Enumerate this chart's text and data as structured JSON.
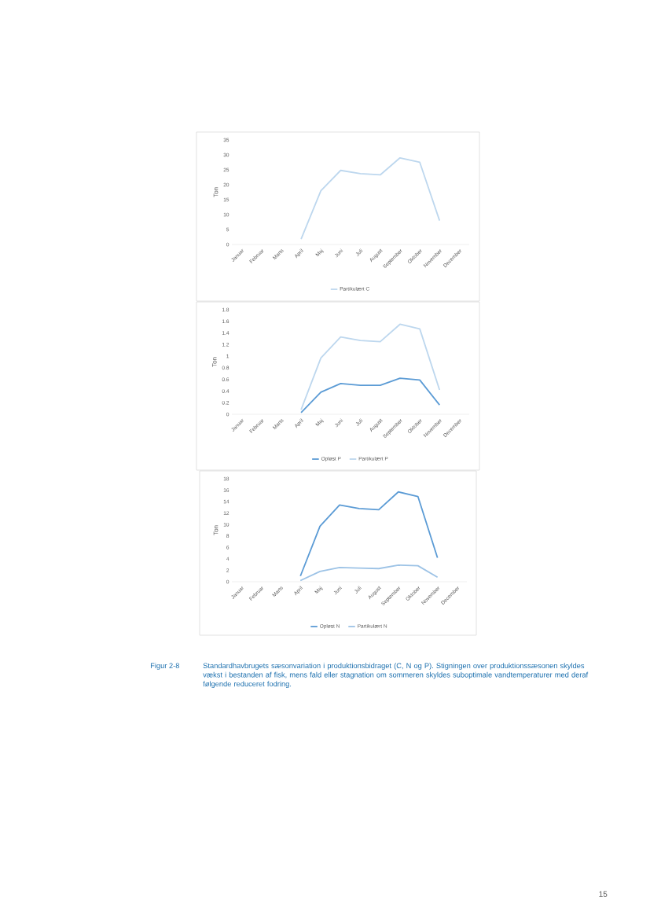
{
  "chart_data": [
    {
      "type": "line",
      "categories": [
        "Januar",
        "Februar",
        "Marts",
        "April",
        "Maj",
        "Juni",
        "Juli",
        "August",
        "September",
        "Oktober",
        "November",
        "December"
      ],
      "ylabel": "Ton",
      "ylim": [
        0,
        35
      ],
      "yticks": [
        0,
        5,
        10,
        15,
        20,
        25,
        30,
        35
      ],
      "grid": false,
      "legend": "bottom",
      "series": [
        {
          "name": "Partikulært C",
          "color": "#bdd7ee",
          "values": [
            null,
            null,
            null,
            1.8,
            18,
            24.8,
            23.7,
            23.3,
            29,
            27.5,
            8,
            null
          ]
        }
      ]
    },
    {
      "type": "line",
      "categories": [
        "Januar",
        "Februar",
        "Marts",
        "April",
        "Maj",
        "Juni",
        "Juli",
        "August",
        "September",
        "Oktober",
        "November",
        "December"
      ],
      "ylabel": "Ton",
      "ylim": [
        0,
        1.8
      ],
      "yticks": [
        0,
        0.2,
        0.4,
        0.6,
        0.8,
        1,
        1.2,
        1.4,
        1.6,
        1.8
      ],
      "grid": false,
      "legend": "bottom",
      "series": [
        {
          "name": "Opløst P",
          "color": "#5b9bd5",
          "values": [
            null,
            null,
            null,
            0.03,
            0.38,
            0.53,
            0.5,
            0.5,
            0.62,
            0.59,
            0.16,
            null
          ]
        },
        {
          "name": "Partikulært P",
          "color": "#bdd7ee",
          "values": [
            null,
            null,
            null,
            0.08,
            0.97,
            1.33,
            1.27,
            1.25,
            1.55,
            1.47,
            0.42,
            null
          ]
        }
      ]
    },
    {
      "type": "line",
      "categories": [
        "Januar",
        "Februar",
        "Marts",
        "April",
        "Maj",
        "Juni",
        "Juli",
        "August",
        "September",
        "Oktober",
        "November",
        "December"
      ],
      "ylabel": "Ton",
      "ylim": [
        0,
        18
      ],
      "yticks": [
        0,
        2,
        4,
        6,
        8,
        10,
        12,
        14,
        16,
        18
      ],
      "grid": false,
      "legend": "bottom",
      "series": [
        {
          "name": "Opløst N",
          "color": "#5b9bd5",
          "values": [
            null,
            null,
            null,
            1.0,
            9.7,
            13.4,
            12.8,
            12.6,
            15.7,
            14.9,
            4.2,
            null
          ]
        },
        {
          "name": "Partikulært N",
          "color": "#9dc3e6",
          "values": [
            null,
            null,
            null,
            0.2,
            1.8,
            2.5,
            2.4,
            2.3,
            2.9,
            2.8,
            0.8,
            null
          ]
        }
      ],
      "annotations": [
        "Figur 2-8",
        "Standardhavbrugets sæsonvariation i produktionsbidraget (C, N og P). Stigningen over produktionssæsonen skyldes vækst i bestanden af fisk, mens fald eller stagnation om sommeren skyldes suboptimale vandtemperaturer med deraf følgende reduceret fodring.",
        "15"
      ]
    }
  ]
}
